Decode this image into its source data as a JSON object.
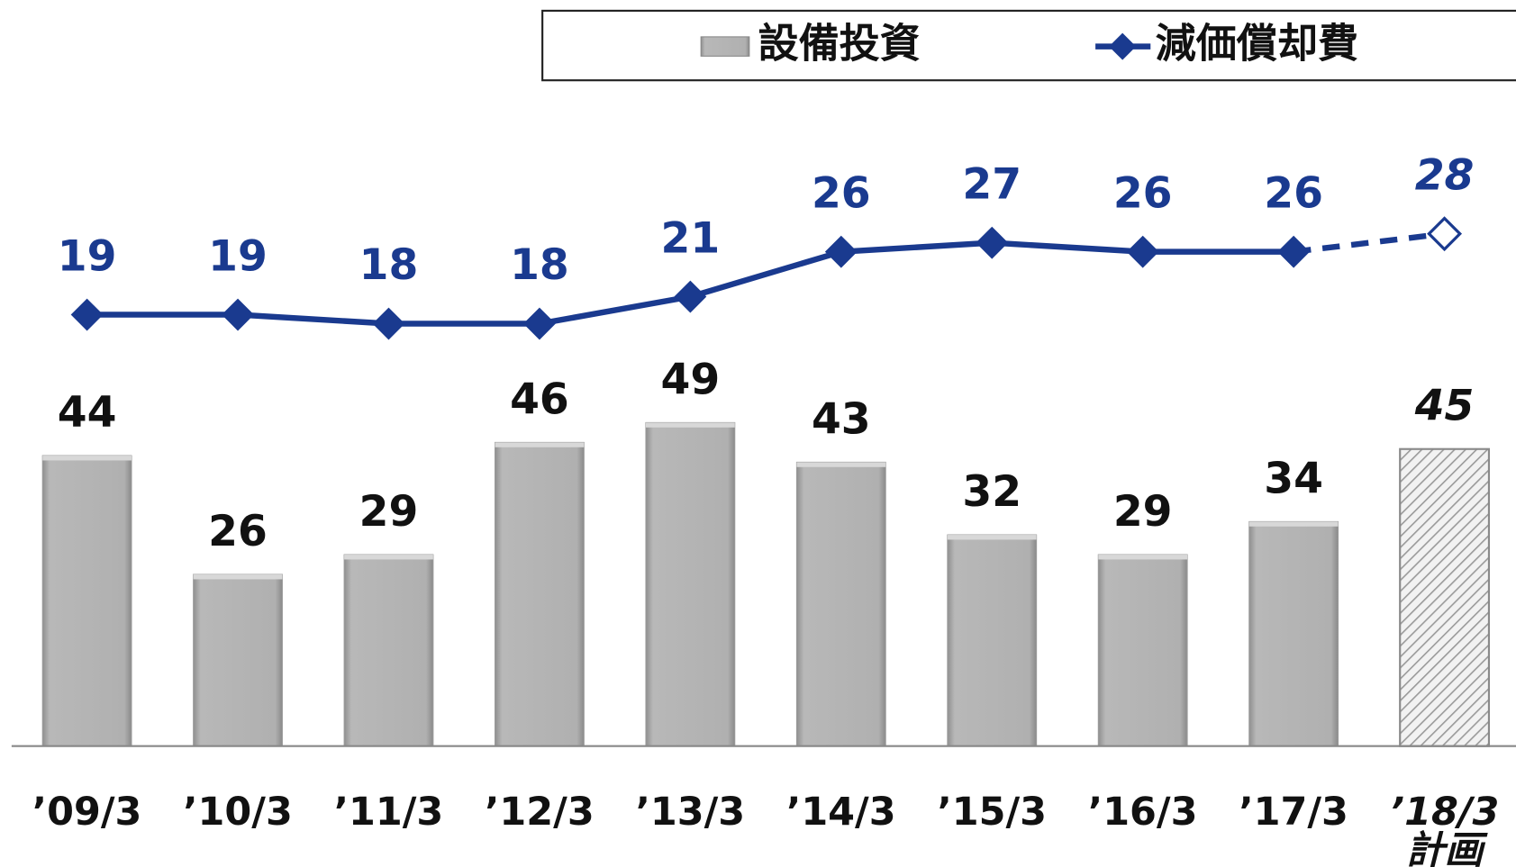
{
  "chart_data": {
    "type": "bar_line",
    "categories": [
      "’09/3",
      "’10/3",
      "’11/3",
      "’12/3",
      "’13/3",
      "’14/3",
      "’15/3",
      "’16/3",
      "’17/3",
      "’18/3\n計画"
    ],
    "forecast": [
      false,
      false,
      false,
      false,
      false,
      false,
      false,
      false,
      false,
      true
    ],
    "series": [
      {
        "name": "設備投資",
        "type": "bar",
        "color": "#b3b3b3",
        "values": [
          44,
          26,
          29,
          46,
          49,
          43,
          32,
          29,
          34,
          45
        ]
      },
      {
        "name": "減価償却費",
        "type": "line",
        "axis": "y2",
        "color": "#1a3a8f",
        "values": [
          19,
          19,
          18,
          18,
          21,
          26,
          27,
          26,
          26,
          28
        ]
      }
    ],
    "ylim": [
      0,
      113
    ],
    "y2lim": [
      -29,
      54
    ],
    "legend": "top-right"
  }
}
